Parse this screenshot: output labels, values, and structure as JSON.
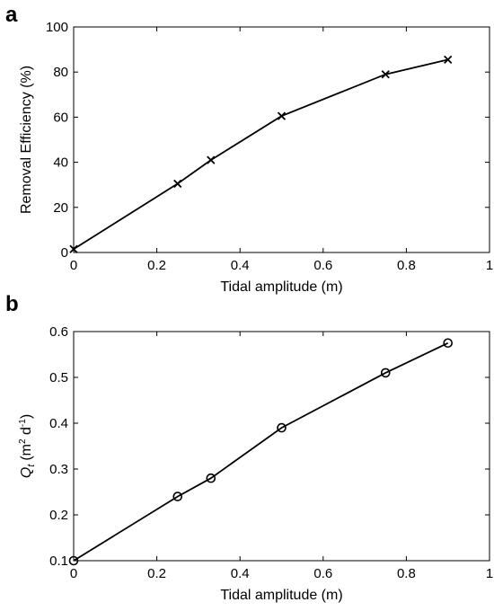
{
  "chart_data": [
    {
      "type": "line",
      "panel_label": "a",
      "xlabel": "Tidal amplitude (m)",
      "ylabel": "Removal Efficiency (%)",
      "xlim": [
        0,
        1
      ],
      "ylim": [
        0,
        100
      ],
      "xticks": [
        0,
        0.2,
        0.4,
        0.6,
        0.8,
        1
      ],
      "yticks": [
        0,
        20,
        40,
        60,
        80,
        100
      ],
      "xtick_labels": [
        "0",
        "0.2",
        "0.4",
        "0.6",
        "0.8",
        "1"
      ],
      "ytick_labels": [
        "0",
        "20",
        "40",
        "60",
        "80",
        "100"
      ],
      "marker": "x",
      "grid": false,
      "series": [
        {
          "x": [
            0,
            0.25,
            0.33,
            0.5,
            0.75,
            0.9
          ],
          "y": [
            1.5,
            30.5,
            41,
            60.5,
            79,
            85.5
          ]
        }
      ]
    },
    {
      "type": "line",
      "panel_label": "b",
      "xlabel": "Tidal amplitude (m)",
      "ylabel_main": "Q",
      "ylabel_sub": "t",
      "ylabel_units_open": "(m",
      "ylabel_units_sup1": "2",
      "ylabel_units_mid": " d",
      "ylabel_units_sup2": "-1",
      "ylabel_units_close": ")",
      "xlim": [
        0,
        1
      ],
      "ylim": [
        0.1,
        0.6
      ],
      "xticks": [
        0,
        0.2,
        0.4,
        0.6,
        0.8,
        1
      ],
      "yticks": [
        0.1,
        0.2,
        0.3,
        0.4,
        0.5,
        0.6
      ],
      "xtick_labels": [
        "0",
        "0.2",
        "0.4",
        "0.6",
        "0.8",
        "1"
      ],
      "ytick_labels": [
        "0.1",
        "0.2",
        "0.3",
        "0.4",
        "0.5",
        "0.6"
      ],
      "marker": "o",
      "grid": false,
      "series": [
        {
          "x": [
            0,
            0.25,
            0.33,
            0.5,
            0.75,
            0.9
          ],
          "y": [
            0.1,
            0.24,
            0.28,
            0.39,
            0.51,
            0.575
          ]
        }
      ]
    }
  ]
}
